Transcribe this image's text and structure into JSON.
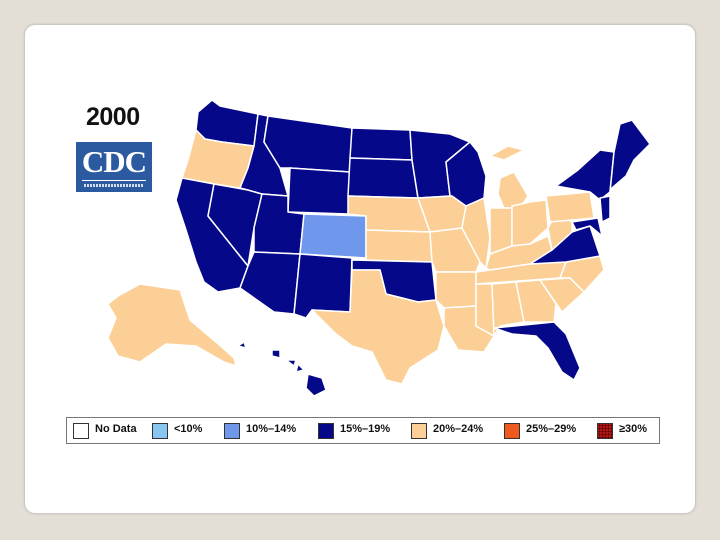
{
  "slide": {
    "year": "2000",
    "logo": "CDC"
  },
  "colors": {
    "no_data": "#ffffff",
    "lt10": "#87c6f0",
    "r10_14": "#6f97ec",
    "r15_19": "#06088a",
    "r20_24": "#fbcf95",
    "r25_29": "#f05a1e",
    "ge30": "#c51a1a",
    "border": "#ffffff"
  },
  "legend": [
    {
      "label": "No Data",
      "color": "#ffffff",
      "pattern": "none"
    },
    {
      "label": "<10%",
      "color": "#87c6f0",
      "pattern": "none"
    },
    {
      "label": "10%–14%",
      "color": "#6f97ec",
      "pattern": "none"
    },
    {
      "label": "15%–19%",
      "color": "#06088a",
      "pattern": "none"
    },
    {
      "label": "20%–24%",
      "color": "#fbcf95",
      "pattern": "none"
    },
    {
      "label": "25%–29%",
      "color": "#f05a1e",
      "pattern": "none"
    },
    {
      "label": "≥30%",
      "color": "#c51a1a",
      "pattern": "dots"
    }
  ],
  "regions": [
    {
      "state": "WA",
      "category": "15%–19%"
    },
    {
      "state": "OR",
      "category": "20%–24%"
    },
    {
      "state": "CA",
      "category": "15%–19%"
    },
    {
      "state": "NV",
      "category": "15%–19%"
    },
    {
      "state": "ID",
      "category": "15%–19%"
    },
    {
      "state": "MT",
      "category": "15%–19%"
    },
    {
      "state": "WY",
      "category": "15%–19%"
    },
    {
      "state": "UT",
      "category": "15%–19%"
    },
    {
      "state": "AZ",
      "category": "15%–19%"
    },
    {
      "state": "CO",
      "category": "10%–14%"
    },
    {
      "state": "NM",
      "category": "15%–19%"
    },
    {
      "state": "ND",
      "category": "15%–19%"
    },
    {
      "state": "SD",
      "category": "15%–19%"
    },
    {
      "state": "NE",
      "category": "20%–24%"
    },
    {
      "state": "KS",
      "category": "20%–24%"
    },
    {
      "state": "OK",
      "category": "15%–19%"
    },
    {
      "state": "TX",
      "category": "20%–24%"
    },
    {
      "state": "MN",
      "category": "15%–19%"
    },
    {
      "state": "IA",
      "category": "20%–24%"
    },
    {
      "state": "MO",
      "category": "20%–24%"
    },
    {
      "state": "AR",
      "category": "20%–24%"
    },
    {
      "state": "LA",
      "category": "20%–24%"
    },
    {
      "state": "WI",
      "category": "15%–19%"
    },
    {
      "state": "IL",
      "category": "20%–24%"
    },
    {
      "state": "MI",
      "category": "20%–24%"
    },
    {
      "state": "IN",
      "category": "20%–24%"
    },
    {
      "state": "OH",
      "category": "20%–24%"
    },
    {
      "state": "KY",
      "category": "20%–24%"
    },
    {
      "state": "TN",
      "category": "20%–24%"
    },
    {
      "state": "MS",
      "category": "20%–24%"
    },
    {
      "state": "AL",
      "category": "20%–24%"
    },
    {
      "state": "GA",
      "category": "20%–24%"
    },
    {
      "state": "FL",
      "category": "15%–19%"
    },
    {
      "state": "SC",
      "category": "20%–24%"
    },
    {
      "state": "NC",
      "category": "20%–24%"
    },
    {
      "state": "VA",
      "category": "15%–19%"
    },
    {
      "state": "WV",
      "category": "20%–24%"
    },
    {
      "state": "PA",
      "category": "20%–24%"
    },
    {
      "state": "NY",
      "category": "15%–19%"
    },
    {
      "state": "New England",
      "category": "15%–19%"
    },
    {
      "state": "NJ",
      "category": "15%–19%"
    },
    {
      "state": "MD",
      "category": "15%–19%"
    },
    {
      "state": "AK",
      "category": "20%–24%"
    },
    {
      "state": "HI",
      "category": "15%–19%"
    }
  ]
}
